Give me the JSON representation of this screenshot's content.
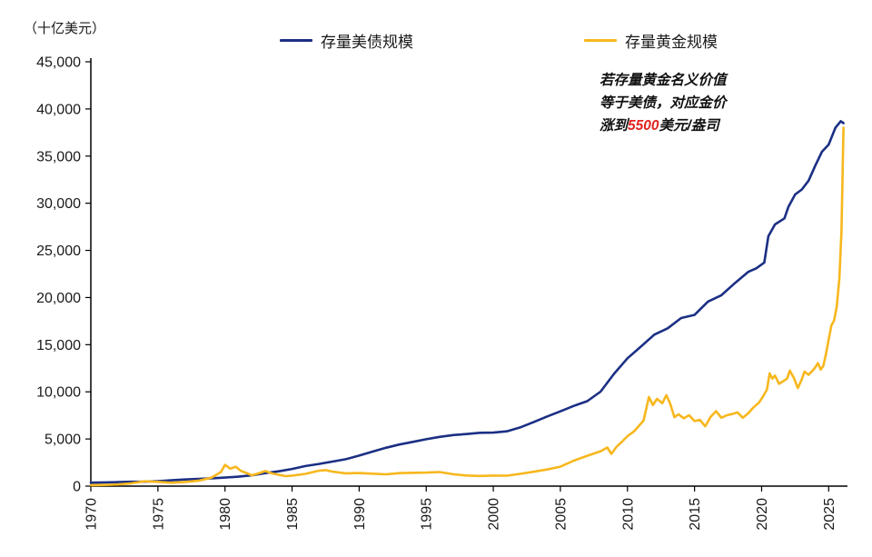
{
  "chart": {
    "unit_label": "（十亿美元）",
    "legend": [
      {
        "label": "存量美债规模"
      },
      {
        "label": "存量黄金规模"
      }
    ],
    "annotation": {
      "line1": "若存量黄金名义价值",
      "line2": "等于美债，对应金价",
      "line3_prefix": "涨到",
      "line3_highlight": "5500",
      "line3_suffix": "美元/盎司",
      "highlight_color": "#e02421"
    }
  },
  "chart_data": {
    "type": "line",
    "title": "",
    "ylabel": "（十亿美元）",
    "unit": "十亿美元",
    "ylim": [
      0,
      45000
    ],
    "ytick_step": 5000,
    "xlim": [
      1970,
      2026.4
    ],
    "xticks": [
      1970,
      1975,
      1980,
      1985,
      1990,
      1995,
      2000,
      2005,
      2010,
      2015,
      2020,
      2025
    ],
    "grid": false,
    "legend_position": "top",
    "annotations": [
      "若存量黄金名义价值等于美债，对应金价涨到5500美元/盎司"
    ],
    "series": [
      {
        "name": "存量美债规模",
        "color": "#1b2f84",
        "points": [
          [
            1970,
            370
          ],
          [
            1971,
            398
          ],
          [
            1972,
            427
          ],
          [
            1973,
            458
          ],
          [
            1974,
            475
          ],
          [
            1975,
            533
          ],
          [
            1976,
            620
          ],
          [
            1977,
            699
          ],
          [
            1978,
            772
          ],
          [
            1979,
            827
          ],
          [
            1980,
            908
          ],
          [
            1981,
            998
          ],
          [
            1982,
            1142
          ],
          [
            1983,
            1377
          ],
          [
            1984,
            1572
          ],
          [
            1985,
            1823
          ],
          [
            1986,
            2125
          ],
          [
            1987,
            2350
          ],
          [
            1988,
            2602
          ],
          [
            1989,
            2857
          ],
          [
            1990,
            3233
          ],
          [
            1991,
            3665
          ],
          [
            1992,
            4065
          ],
          [
            1993,
            4411
          ],
          [
            1994,
            4693
          ],
          [
            1995,
            4974
          ],
          [
            1996,
            5225
          ],
          [
            1997,
            5413
          ],
          [
            1998,
            5526
          ],
          [
            1999,
            5656
          ],
          [
            2000,
            5674
          ],
          [
            2001,
            5807
          ],
          [
            2002,
            6228
          ],
          [
            2003,
            6783
          ],
          [
            2004,
            7379
          ],
          [
            2005,
            7933
          ],
          [
            2006,
            8507
          ],
          [
            2007,
            9008
          ],
          [
            2008,
            10025
          ],
          [
            2009,
            11910
          ],
          [
            2010,
            13562
          ],
          [
            2011,
            14790
          ],
          [
            2012,
            16066
          ],
          [
            2013,
            16738
          ],
          [
            2014,
            17824
          ],
          [
            2015,
            18151
          ],
          [
            2016,
            19573
          ],
          [
            2017,
            20245
          ],
          [
            2018,
            21516
          ],
          [
            2019,
            22719
          ],
          [
            2019.6,
            23100
          ],
          [
            2020.2,
            23700
          ],
          [
            2020.5,
            26500
          ],
          [
            2021,
            27750
          ],
          [
            2021.7,
            28400
          ],
          [
            2022,
            29620
          ],
          [
            2022.5,
            30930
          ],
          [
            2023,
            31460
          ],
          [
            2023.5,
            32400
          ],
          [
            2024,
            34000
          ],
          [
            2024.5,
            35460
          ],
          [
            2025,
            36220
          ],
          [
            2025.5,
            38000
          ],
          [
            2025.9,
            38700
          ],
          [
            2026.1,
            38500
          ]
        ]
      },
      {
        "name": "存量黄金规模",
        "color": "#f7b71d",
        "points": [
          [
            1970,
            106
          ],
          [
            1971,
            125
          ],
          [
            1972,
            175
          ],
          [
            1973,
            300
          ],
          [
            1974,
            510
          ],
          [
            1975,
            450
          ],
          [
            1976,
            360
          ],
          [
            1977,
            440
          ],
          [
            1978,
            570
          ],
          [
            1979,
            900
          ],
          [
            1979.7,
            1500
          ],
          [
            1980,
            2250
          ],
          [
            1980.4,
            1850
          ],
          [
            1980.8,
            2050
          ],
          [
            1981.2,
            1600
          ],
          [
            1981.6,
            1400
          ],
          [
            1982,
            1150
          ],
          [
            1982.6,
            1400
          ],
          [
            1983,
            1600
          ],
          [
            1983.5,
            1350
          ],
          [
            1984,
            1200
          ],
          [
            1984.5,
            1060
          ],
          [
            1985,
            1110
          ],
          [
            1986,
            1300
          ],
          [
            1987,
            1640
          ],
          [
            1987.5,
            1700
          ],
          [
            1988,
            1540
          ],
          [
            1989,
            1360
          ],
          [
            1990,
            1390
          ],
          [
            1991,
            1320
          ],
          [
            1992,
            1250
          ],
          [
            1993,
            1380
          ],
          [
            1994,
            1420
          ],
          [
            1995,
            1440
          ],
          [
            1996,
            1490
          ],
          [
            1997,
            1260
          ],
          [
            1998,
            1130
          ],
          [
            1999,
            1080
          ],
          [
            2000,
            1120
          ],
          [
            2001,
            1110
          ],
          [
            2002,
            1300
          ],
          [
            2003,
            1520
          ],
          [
            2004,
            1760
          ],
          [
            2005,
            2060
          ],
          [
            2006,
            2700
          ],
          [
            2007,
            3220
          ],
          [
            2008,
            3700
          ],
          [
            2008.5,
            4100
          ],
          [
            2008.8,
            3420
          ],
          [
            2009.2,
            4200
          ],
          [
            2009.6,
            4720
          ],
          [
            2010,
            5300
          ],
          [
            2010.5,
            5820
          ],
          [
            2010.8,
            6300
          ],
          [
            2011.2,
            6950
          ],
          [
            2011.6,
            9450
          ],
          [
            2011.9,
            8600
          ],
          [
            2012.2,
            9250
          ],
          [
            2012.6,
            8800
          ],
          [
            2012.9,
            9650
          ],
          [
            2013.2,
            8700
          ],
          [
            2013.5,
            7300
          ],
          [
            2013.8,
            7620
          ],
          [
            2014.2,
            7200
          ],
          [
            2014.6,
            7520
          ],
          [
            2015,
            6900
          ],
          [
            2015.4,
            7020
          ],
          [
            2015.8,
            6350
          ],
          [
            2016.2,
            7350
          ],
          [
            2016.6,
            7950
          ],
          [
            2017,
            7250
          ],
          [
            2017.4,
            7520
          ],
          [
            2017.8,
            7640
          ],
          [
            2018.2,
            7820
          ],
          [
            2018.6,
            7250
          ],
          [
            2019,
            7720
          ],
          [
            2019.4,
            8350
          ],
          [
            2019.8,
            8850
          ],
          [
            2020.1,
            9500
          ],
          [
            2020.4,
            10250
          ],
          [
            2020.6,
            11950
          ],
          [
            2020.8,
            11400
          ],
          [
            2021,
            11720
          ],
          [
            2021.3,
            10850
          ],
          [
            2021.6,
            11120
          ],
          [
            2021.9,
            11400
          ],
          [
            2022.1,
            12250
          ],
          [
            2022.4,
            11500
          ],
          [
            2022.7,
            10400
          ],
          [
            2023,
            11350
          ],
          [
            2023.2,
            12150
          ],
          [
            2023.5,
            11800
          ],
          [
            2023.8,
            12250
          ],
          [
            2024,
            12600
          ],
          [
            2024.2,
            13050
          ],
          [
            2024.4,
            12350
          ],
          [
            2024.6,
            12750
          ],
          [
            2024.8,
            14050
          ],
          [
            2025,
            15550
          ],
          [
            2025.2,
            17050
          ],
          [
            2025.4,
            17550
          ],
          [
            2025.6,
            19050
          ],
          [
            2025.8,
            22050
          ],
          [
            2025.95,
            27000
          ],
          [
            2026.1,
            38000
          ]
        ]
      }
    ]
  }
}
